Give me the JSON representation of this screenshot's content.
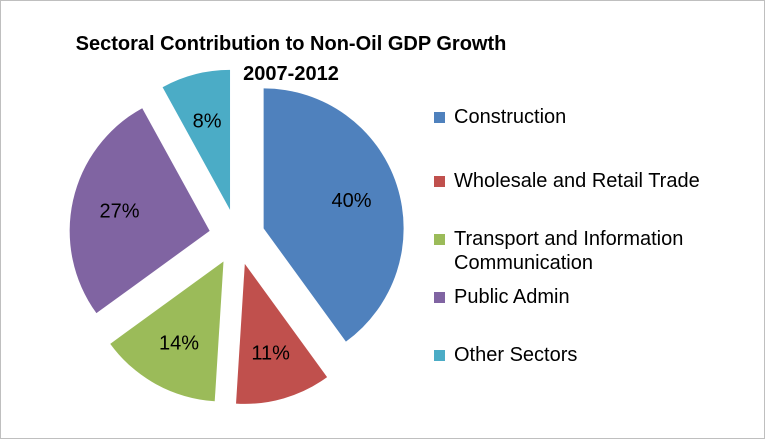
{
  "chart_data": {
    "type": "pie",
    "title": "Sectoral Contribution to Non-Oil GDP Growth 2007-2012",
    "slices": [
      {
        "label": "Construction",
        "value": 40,
        "display": "40%",
        "color": "#4F81BD"
      },
      {
        "label": "Wholesale and Retail Trade",
        "value": 11,
        "display": "11%",
        "color": "#C0504D"
      },
      {
        "label": "Transport and Information Communication",
        "value": 14,
        "display": "14%",
        "color": "#9BBB59"
      },
      {
        "label": "Public Admin",
        "value": 27,
        "display": "27%",
        "color": "#8064A2"
      },
      {
        "label": "Other Sectors",
        "value": 8,
        "display": "8%",
        "color": "#4BACC6"
      }
    ],
    "exploded": true,
    "start_angle": "12 o'clock, clockwise",
    "legend_position": "right"
  }
}
